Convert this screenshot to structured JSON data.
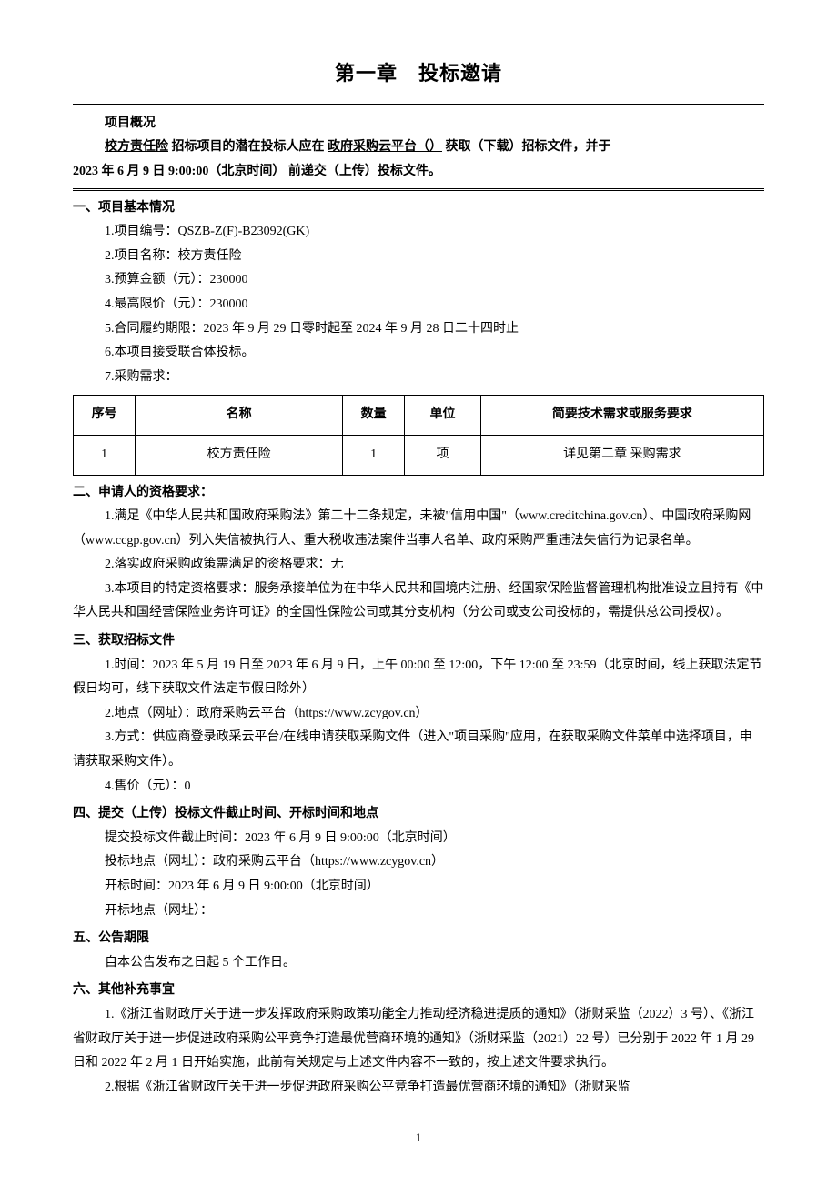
{
  "title": "第一章　投标邀请",
  "overview": {
    "label": "项目概况",
    "project_name_u": "校方责任险",
    "mid_text_1": " 招标项目的潜在投标人应在 ",
    "platform_u": "政府采购云平台（）",
    "mid_text_2": " 获取（下载）招标文件，并于",
    "deadline_u": "2023 年 6 月 9 日 9:00:00（北京时间）",
    "tail": " 前递交（上传）投标文件。"
  },
  "sec1": {
    "heading": "一、项目基本情况",
    "items": {
      "1": "1.项目编号：QSZB-Z(F)-B23092(GK)",
      "2": "2.项目名称：校方责任险",
      "3": "3.预算金额（元）：230000",
      "4": "4.最高限价（元）：230000",
      "5": "5.合同履约期限：2023 年 9 月 29 日零时起至 2024 年 9 月 28 日二十四时止",
      "6": "6.本项目接受联合体投标。",
      "7": "7.采购需求："
    },
    "table": {
      "headers": {
        "seq": "序号",
        "name": "名称",
        "qty": "数量",
        "unit": "单位",
        "desc": "简要技术需求或服务要求"
      },
      "rows": [
        {
          "seq": "1",
          "name": "校方责任险",
          "qty": "1",
          "unit": "项",
          "desc": "详见第二章 采购需求"
        }
      ]
    }
  },
  "sec2": {
    "heading": "二、申请人的资格要求：",
    "p1": "1.满足《中华人民共和国政府采购法》第二十二条规定，未被\"信用中国\"（www.creditchina.gov.cn）、中国政府采购网（www.ccgp.gov.cn）列入失信被执行人、重大税收违法案件当事人名单、政府采购严重违法失信行为记录名单。",
    "p2": "2.落实政府采购政策需满足的资格要求：无",
    "p3": "3.本项目的特定资格要求：服务承接单位为在中华人民共和国境内注册、经国家保险监督管理机构批准设立且持有《中华人民共和国经营保险业务许可证》的全国性保险公司或其分支机构（分公司或支公司投标的，需提供总公司授权）。"
  },
  "sec3": {
    "heading": "三、获取招标文件",
    "p1": "1.时间：2023 年 5 月 19 日至 2023 年 6 月 9 日，上午 00:00 至 12:00，下午 12:00 至 23:59（北京时间，线上获取法定节假日均可，线下获取文件法定节假日除外）",
    "p2": "2.地点（网址）：政府采购云平台（https://www.zcygov.cn）",
    "p3": "3.方式：供应商登录政采云平台/在线申请获取采购文件（进入\"项目采购\"应用，在获取采购文件菜单中选择项目，申请获取采购文件）。",
    "p4": "4.售价（元）：0"
  },
  "sec4": {
    "heading": "四、提交（上传）投标文件截止时间、开标时间和地点",
    "p1": "提交投标文件截止时间：2023 年 6 月 9 日 9:00:00（北京时间）",
    "p2": "投标地点（网址）：政府采购云平台（https://www.zcygov.cn）",
    "p3": "开标时间：2023 年 6 月 9 日 9:00:00（北京时间）",
    "p4": "开标地点（网址）："
  },
  "sec5": {
    "heading": "五、公告期限",
    "p1": "自本公告发布之日起 5 个工作日。"
  },
  "sec6": {
    "heading": "六、其他补充事宜",
    "p1": "1.《浙江省财政厅关于进一步发挥政府采购政策功能全力推动经济稳进提质的通知》（浙财采监（2022）3 号）、《浙江省财政厅关于进一步促进政府采购公平竞争打造最优营商环境的通知》（浙财采监（2021）22 号）已分别于 2022 年 1 月 29 日和 2022 年 2 月 1 日开始实施，此前有关规定与上述文件内容不一致的，按上述文件要求执行。",
    "p2": "2.根据《浙江省财政厅关于进一步促进政府采购公平竞争打造最优营商环境的通知》（浙财采监"
  },
  "page_number": "1"
}
